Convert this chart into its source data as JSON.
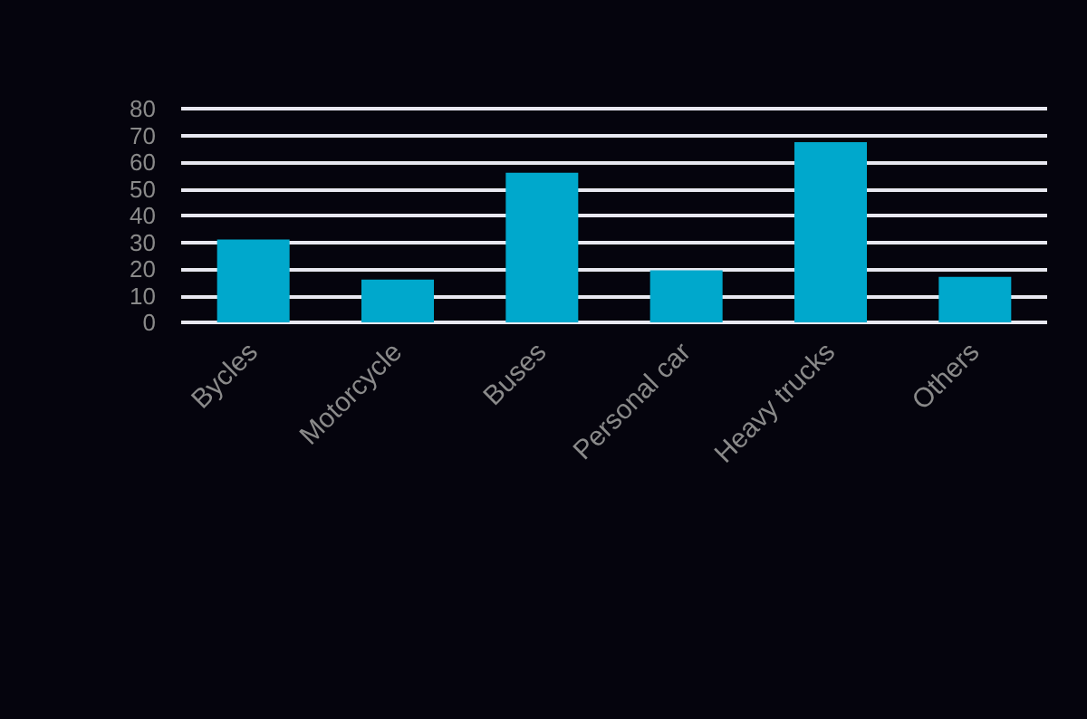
{
  "chart_data": {
    "type": "bar",
    "categories": [
      "Bycles",
      "Motorcycle",
      "Buses",
      "Personal car",
      "Heavy trucks",
      "Others"
    ],
    "values": [
      31,
      16,
      56,
      19.5,
      67.5,
      17
    ],
    "color": "#00a8cc",
    "ylim": [
      0,
      80
    ],
    "yticks": [
      0,
      10,
      20,
      30,
      40,
      50,
      60,
      70,
      80
    ],
    "grid": "y"
  }
}
